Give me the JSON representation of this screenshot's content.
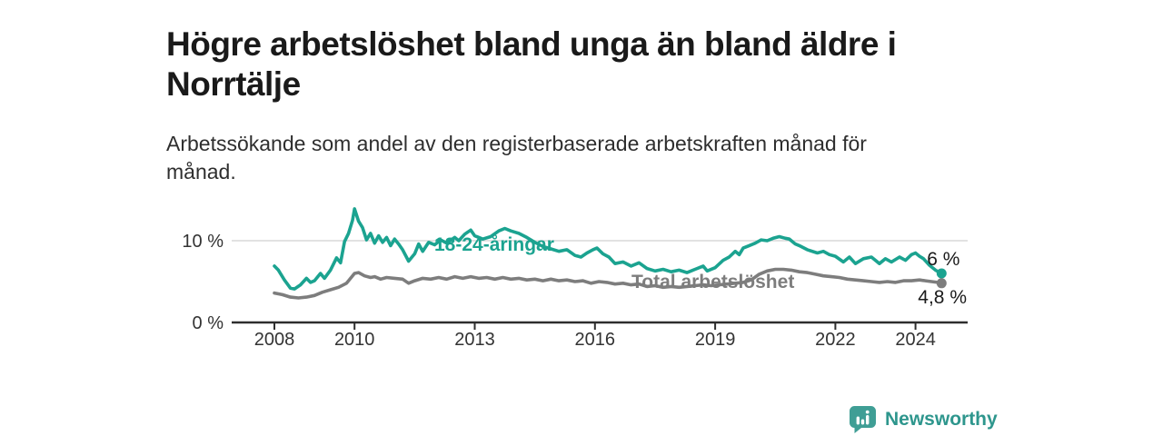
{
  "page": {
    "title": "Högre arbetslöshet bland unga än bland äldre i Norrtälje",
    "subtitle": "Arbetssökande som andel av den registerbaserade arbetskraften månad för månad."
  },
  "brand": {
    "name": "Newsworthy",
    "icon": "newsworthy-speech-bubble-bar-chart",
    "color": "#3f9e95"
  },
  "chart_data": {
    "type": "line",
    "title": "Högre arbetslöshet bland unga än bland äldre i Norrtälje",
    "subtitle": "Arbetssökande som andel av den registerbaserade arbetskraften månad för månad.",
    "unit": "%",
    "xlabel": "",
    "ylabel": "",
    "ylim": [
      0,
      14.5
    ],
    "x_range": [
      2007,
      2025.3
    ],
    "grid": "horizontal-10-only",
    "legend_position": "inline-labels",
    "y_tick_labels": [
      "0 %",
      "10 %"
    ],
    "y_tick_values": [
      0,
      10
    ],
    "x_ticks": [
      2008,
      2010,
      2013,
      2016,
      2019,
      2022,
      2024
    ],
    "axis_color": "#2e2e2e",
    "grid_color": "#d9d9d9",
    "series": [
      {
        "name": "18-24-åringar",
        "color": "#1ba390",
        "end_label": "6 %",
        "end_value": 6.0,
        "x": [
          2008.0,
          2008.1,
          2008.25,
          2008.4,
          2008.5,
          2008.65,
          2008.8,
          2008.9,
          2009.0,
          2009.15,
          2009.25,
          2009.4,
          2009.55,
          2009.65,
          2009.75,
          2009.85,
          2009.95,
          2010.0,
          2010.1,
          2010.2,
          2010.3,
          2010.4,
          2010.5,
          2010.6,
          2010.7,
          2010.8,
          2010.9,
          2011.0,
          2011.1,
          2011.2,
          2011.35,
          2011.5,
          2011.6,
          2011.7,
          2011.85,
          2012.0,
          2012.15,
          2012.3,
          2012.5,
          2012.6,
          2012.75,
          2012.9,
          2013.0,
          2013.2,
          2013.4,
          2013.6,
          2013.75,
          2013.9,
          2014.1,
          2014.3,
          2014.5,
          2014.7,
          2014.9,
          2015.1,
          2015.3,
          2015.5,
          2015.65,
          2015.8,
          2015.95,
          2016.05,
          2016.2,
          2016.35,
          2016.5,
          2016.7,
          2016.9,
          2017.1,
          2017.3,
          2017.5,
          2017.7,
          2017.9,
          2018.1,
          2018.3,
          2018.5,
          2018.7,
          2018.8,
          2019.0,
          2019.2,
          2019.35,
          2019.5,
          2019.6,
          2019.7,
          2019.85,
          2020.0,
          2020.15,
          2020.3,
          2020.45,
          2020.6,
          2020.75,
          2020.85,
          2021.0,
          2021.1,
          2021.3,
          2021.55,
          2021.7,
          2021.85,
          2022.0,
          2022.2,
          2022.35,
          2022.5,
          2022.7,
          2022.9,
          2023.1,
          2023.25,
          2023.4,
          2023.6,
          2023.75,
          2023.9,
          2024.0,
          2024.1,
          2024.2,
          2024.35,
          2024.5,
          2024.65
        ],
        "values": [
          6.9,
          6.4,
          5.2,
          4.2,
          4.1,
          4.6,
          5.4,
          4.9,
          5.1,
          6.0,
          5.4,
          6.4,
          7.9,
          7.3,
          9.9,
          10.9,
          12.5,
          13.9,
          12.4,
          11.6,
          10.1,
          10.9,
          9.7,
          10.6,
          9.8,
          10.4,
          9.4,
          10.2,
          9.6,
          8.9,
          7.5,
          8.4,
          9.6,
          8.7,
          9.8,
          9.5,
          10.1,
          9.7,
          10.4,
          10.0,
          10.8,
          11.3,
          10.6,
          10.2,
          10.5,
          11.2,
          11.5,
          11.2,
          10.9,
          10.4,
          9.8,
          9.3,
          9.0,
          8.7,
          8.9,
          8.2,
          8.0,
          8.5,
          8.9,
          9.1,
          8.4,
          8.0,
          7.2,
          7.4,
          6.9,
          7.3,
          6.6,
          6.3,
          6.5,
          6.2,
          6.4,
          6.1,
          6.5,
          6.9,
          6.3,
          6.7,
          7.6,
          8.0,
          8.7,
          8.3,
          9.1,
          9.4,
          9.7,
          10.1,
          10.0,
          10.3,
          10.5,
          10.3,
          10.2,
          9.6,
          9.4,
          8.9,
          8.5,
          8.7,
          8.3,
          8.1,
          7.4,
          8.0,
          7.2,
          7.8,
          8.0,
          7.2,
          7.8,
          7.4,
          8.0,
          7.6,
          8.3,
          8.5,
          8.1,
          7.8,
          7.0,
          6.4,
          6.0
        ]
      },
      {
        "name": "Total arbetslöshet",
        "color": "#7d7d7d",
        "end_label": "4,8 %",
        "end_value": 4.8,
        "x": [
          2008.0,
          2008.2,
          2008.4,
          2008.6,
          2008.8,
          2009.0,
          2009.2,
          2009.4,
          2009.6,
          2009.8,
          2010.0,
          2010.1,
          2010.25,
          2010.4,
          2010.5,
          2010.65,
          2010.8,
          2011.0,
          2011.2,
          2011.35,
          2011.5,
          2011.7,
          2011.9,
          2012.1,
          2012.3,
          2012.5,
          2012.7,
          2012.9,
          2013.1,
          2013.3,
          2013.5,
          2013.7,
          2013.9,
          2014.1,
          2014.3,
          2014.5,
          2014.7,
          2014.9,
          2015.1,
          2015.3,
          2015.5,
          2015.7,
          2015.9,
          2016.1,
          2016.3,
          2016.5,
          2016.7,
          2016.9,
          2017.1,
          2017.3,
          2017.5,
          2017.7,
          2017.9,
          2018.1,
          2018.3,
          2018.5,
          2018.7,
          2018.9,
          2019.1,
          2019.3,
          2019.5,
          2019.7,
          2019.9,
          2020.1,
          2020.3,
          2020.5,
          2020.7,
          2020.9,
          2021.1,
          2021.3,
          2021.5,
          2021.7,
          2021.9,
          2022.1,
          2022.3,
          2022.5,
          2022.7,
          2022.9,
          2023.1,
          2023.3,
          2023.5,
          2023.7,
          2023.9,
          2024.1,
          2024.25,
          2024.4,
          2024.55,
          2024.65
        ],
        "values": [
          3.6,
          3.4,
          3.1,
          3.0,
          3.1,
          3.3,
          3.7,
          4.0,
          4.3,
          4.8,
          6.0,
          6.1,
          5.7,
          5.5,
          5.6,
          5.3,
          5.5,
          5.4,
          5.3,
          4.8,
          5.1,
          5.4,
          5.3,
          5.5,
          5.3,
          5.6,
          5.4,
          5.6,
          5.4,
          5.5,
          5.3,
          5.5,
          5.3,
          5.4,
          5.2,
          5.3,
          5.1,
          5.3,
          5.1,
          5.2,
          5.0,
          5.1,
          4.8,
          5.0,
          4.9,
          4.7,
          4.8,
          4.6,
          4.7,
          4.4,
          4.5,
          4.3,
          4.4,
          4.3,
          4.4,
          4.5,
          4.6,
          4.5,
          4.6,
          4.7,
          4.8,
          4.9,
          5.2,
          5.9,
          6.3,
          6.5,
          6.5,
          6.4,
          6.2,
          6.1,
          5.9,
          5.7,
          5.6,
          5.5,
          5.3,
          5.2,
          5.1,
          5.0,
          4.9,
          5.0,
          4.9,
          5.1,
          5.1,
          5.2,
          5.1,
          5.0,
          4.9,
          4.8
        ]
      }
    ]
  }
}
